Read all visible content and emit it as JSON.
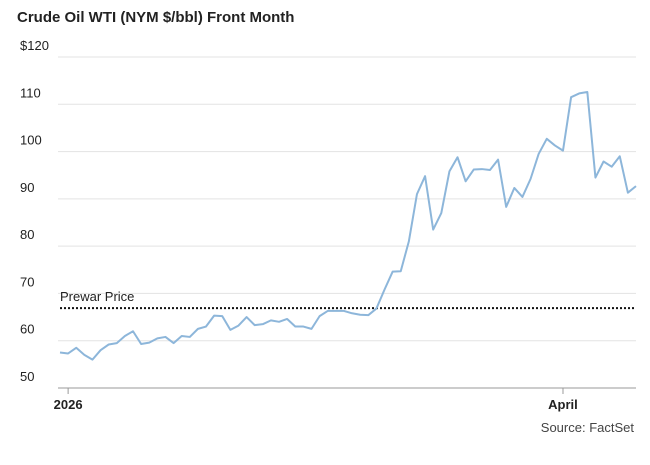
{
  "chart_data": {
    "type": "line",
    "title": "Crude Oil WTI (NYM $/bbl) Front Month",
    "source": "Source: FactSet",
    "categories": [
      null,
      "2026",
      null,
      null,
      null,
      null,
      null,
      null,
      null,
      null,
      null,
      null,
      null,
      null,
      null,
      null,
      null,
      null,
      null,
      null,
      null,
      null,
      null,
      null,
      null,
      null,
      null,
      null,
      null,
      null,
      null,
      null,
      null,
      null,
      null,
      null,
      null,
      null,
      null,
      null,
      null,
      null,
      null,
      null,
      null,
      null,
      null,
      null,
      null,
      null,
      null,
      null,
      null,
      null,
      null,
      null,
      null,
      null,
      null,
      null,
      null,
      null,
      "April",
      null,
      null,
      null,
      null,
      null,
      null,
      null,
      null,
      null
    ],
    "series": [
      {
        "name": "Crude Oil WTI",
        "color": "#8db6da",
        "values": [
          57.5,
          57.3,
          58.5,
          57,
          56,
          58,
          59.2,
          59.5,
          61,
          62,
          59.3,
          59.6,
          60.5,
          60.8,
          59.5,
          61,
          60.8,
          62.5,
          63,
          65.3,
          65.2,
          62.3,
          63.2,
          65,
          63.3,
          63.5,
          64.3,
          64,
          64.6,
          63,
          63,
          62.5,
          65.2,
          66.3,
          66.3,
          66.3,
          65.8,
          65.5,
          65.4,
          66.8,
          70.8,
          74.6,
          74.7,
          81,
          91,
          94.8,
          83.5,
          87,
          95.8,
          98.8,
          93.7,
          96.2,
          96.3,
          96.1,
          98.3,
          88.3,
          92.3,
          90.4,
          94.2,
          99.5,
          102.7,
          101.3,
          100.2,
          111.5,
          112.3,
          112.6,
          94.5,
          97.9,
          96.8,
          99,
          91.3,
          92.7
        ]
      }
    ],
    "reference": {
      "label": "Prewar Price",
      "value": 66.9
    },
    "ylim": [
      50,
      120
    ],
    "yticks": [
      50,
      60,
      70,
      80,
      90,
      100,
      110,
      {
        "value": 120,
        "label": "$120"
      }
    ],
    "grid": true
  }
}
